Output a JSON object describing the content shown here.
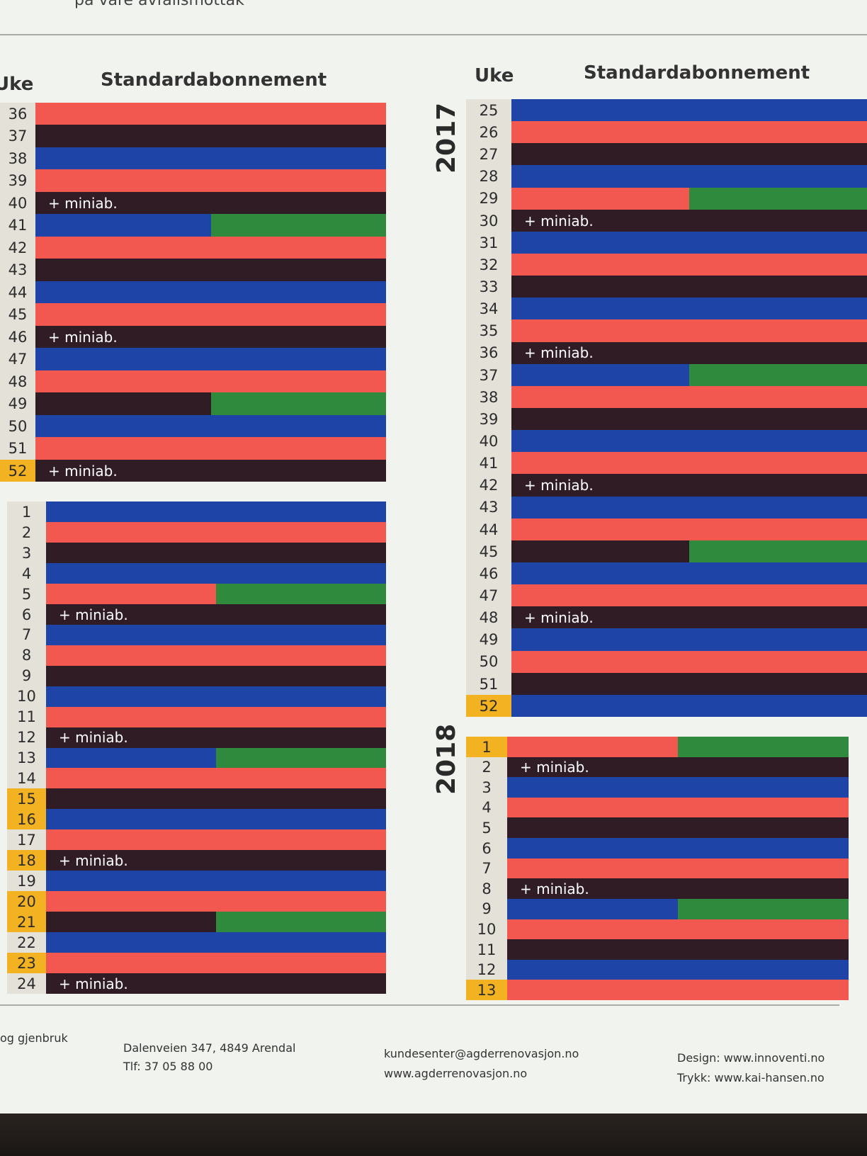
{
  "top_text": "på våre avfallsmottak",
  "header": {
    "left_uke": "Uke",
    "left_title": "Standardabonnement",
    "right_uke": "Uke",
    "right_title": "Standardabonnement"
  },
  "years": {
    "first": "2017",
    "second": "2018"
  },
  "legend_note": "+ miniab.",
  "colors": {
    "red": "#f2584f",
    "dark": "#2f1c24",
    "blue": "#1f44a8",
    "green": "#2f8a3e",
    "highlight": "#f2b221"
  },
  "blocks": [
    {
      "id": "left-2017",
      "rows": [
        {
          "week": "36",
          "color": "red"
        },
        {
          "week": "37",
          "color": "dark"
        },
        {
          "week": "38",
          "color": "blue"
        },
        {
          "week": "39",
          "color": "red"
        },
        {
          "week": "40",
          "color": "dark",
          "mini": true
        },
        {
          "week": "41",
          "color": "blue",
          "green": true
        },
        {
          "week": "42",
          "color": "red"
        },
        {
          "week": "43",
          "color": "dark"
        },
        {
          "week": "44",
          "color": "blue"
        },
        {
          "week": "45",
          "color": "red"
        },
        {
          "week": "46",
          "color": "dark",
          "mini": true
        },
        {
          "week": "47",
          "color": "blue"
        },
        {
          "week": "48",
          "color": "red"
        },
        {
          "week": "49",
          "color": "dark",
          "green": true
        },
        {
          "week": "50",
          "color": "blue"
        },
        {
          "week": "51",
          "color": "red"
        },
        {
          "week": "52",
          "color": "dark",
          "mini": true,
          "hl": true
        }
      ]
    },
    {
      "id": "left-2018",
      "rows": [
        {
          "week": "1",
          "color": "blue"
        },
        {
          "week": "2",
          "color": "red"
        },
        {
          "week": "3",
          "color": "dark"
        },
        {
          "week": "4",
          "color": "blue"
        },
        {
          "week": "5",
          "color": "red",
          "green": true
        },
        {
          "week": "6",
          "color": "dark",
          "mini": true
        },
        {
          "week": "7",
          "color": "blue"
        },
        {
          "week": "8",
          "color": "red"
        },
        {
          "week": "9",
          "color": "dark"
        },
        {
          "week": "10",
          "color": "blue"
        },
        {
          "week": "11",
          "color": "red"
        },
        {
          "week": "12",
          "color": "dark",
          "mini": true
        },
        {
          "week": "13",
          "color": "blue",
          "green": true
        },
        {
          "week": "14",
          "color": "red"
        },
        {
          "week": "15",
          "color": "dark",
          "hl": true
        },
        {
          "week": "16",
          "color": "blue",
          "hl": true
        },
        {
          "week": "17",
          "color": "red"
        },
        {
          "week": "18",
          "color": "dark",
          "mini": true,
          "hl": true
        },
        {
          "week": "19",
          "color": "blue"
        },
        {
          "week": "20",
          "color": "red",
          "hl": true
        },
        {
          "week": "21",
          "color": "dark",
          "green": true,
          "hl": true
        },
        {
          "week": "22",
          "color": "blue"
        },
        {
          "week": "23",
          "color": "red",
          "hl": true
        },
        {
          "week": "24",
          "color": "dark",
          "mini": true
        }
      ]
    },
    {
      "id": "right-2017",
      "rows": [
        {
          "week": "25",
          "color": "blue"
        },
        {
          "week": "26",
          "color": "red"
        },
        {
          "week": "27",
          "color": "dark"
        },
        {
          "week": "28",
          "color": "blue"
        },
        {
          "week": "29",
          "color": "red",
          "green": true
        },
        {
          "week": "30",
          "color": "dark",
          "mini": true
        },
        {
          "week": "31",
          "color": "blue"
        },
        {
          "week": "32",
          "color": "red"
        },
        {
          "week": "33",
          "color": "dark"
        },
        {
          "week": "34",
          "color": "blue"
        },
        {
          "week": "35",
          "color": "red"
        },
        {
          "week": "36",
          "color": "dark",
          "mini": true
        },
        {
          "week": "37",
          "color": "blue",
          "green": true
        },
        {
          "week": "38",
          "color": "red"
        },
        {
          "week": "39",
          "color": "dark"
        },
        {
          "week": "40",
          "color": "blue"
        },
        {
          "week": "41",
          "color": "red"
        },
        {
          "week": "42",
          "color": "dark",
          "mini": true
        },
        {
          "week": "43",
          "color": "blue"
        },
        {
          "week": "44",
          "color": "red"
        },
        {
          "week": "45",
          "color": "dark",
          "green": true
        },
        {
          "week": "46",
          "color": "blue"
        },
        {
          "week": "47",
          "color": "red"
        },
        {
          "week": "48",
          "color": "dark",
          "mini": true
        },
        {
          "week": "49",
          "color": "blue"
        },
        {
          "week": "50",
          "color": "red"
        },
        {
          "week": "51",
          "color": "dark"
        },
        {
          "week": "52",
          "color": "blue",
          "hl": true
        }
      ]
    },
    {
      "id": "right-2018",
      "rows": [
        {
          "week": "1",
          "color": "red",
          "green": true,
          "hl": true
        },
        {
          "week": "2",
          "color": "dark",
          "mini": true
        },
        {
          "week": "3",
          "color": "blue"
        },
        {
          "week": "4",
          "color": "red"
        },
        {
          "week": "5",
          "color": "dark"
        },
        {
          "week": "6",
          "color": "blue"
        },
        {
          "week": "7",
          "color": "red"
        },
        {
          "week": "8",
          "color": "dark",
          "mini": true
        },
        {
          "week": "9",
          "color": "blue",
          "green": true
        },
        {
          "week": "10",
          "color": "red"
        },
        {
          "week": "11",
          "color": "dark"
        },
        {
          "week": "12",
          "color": "blue"
        },
        {
          "week": "13",
          "color": "red",
          "hl": true
        }
      ]
    }
  ],
  "footer": {
    "col1": "og gjenbruk",
    "address": "Dalenveien 347,  4849 Arendal",
    "phone": "Tlf: 37 05 88 00",
    "email": "kundesenter@agderrenovasjon.no",
    "web": "www.agderrenovasjon.no",
    "design": "Design:  www.innoventi.no",
    "print": "Trykk: www.kai-hansen.no"
  }
}
